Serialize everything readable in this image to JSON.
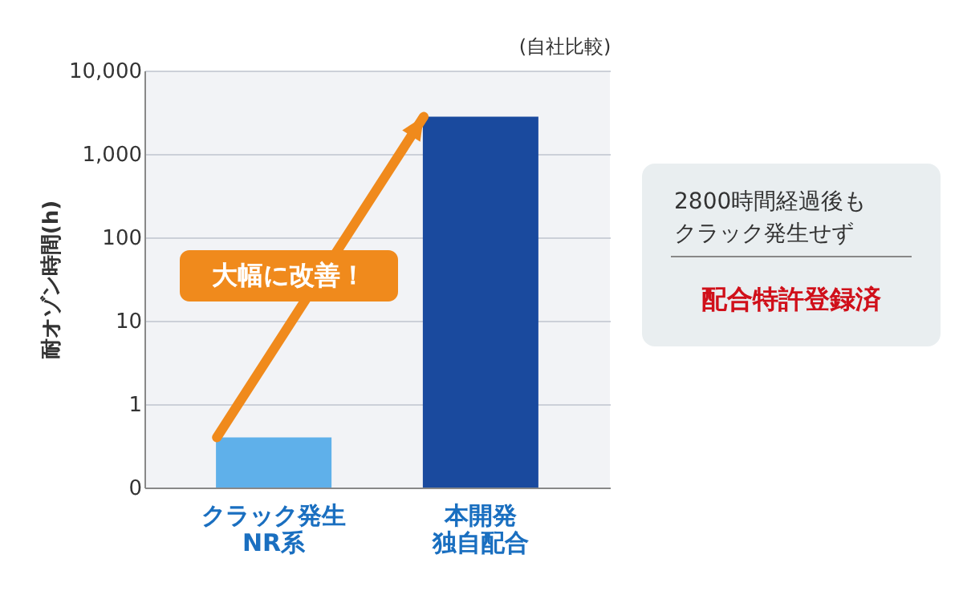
{
  "chart_data": {
    "type": "bar",
    "ylabel": "耐オゾン時間(h)",
    "categories": [
      "クラック発生NR系",
      "本開発独自配合"
    ],
    "values": [
      0.4,
      2800
    ],
    "colors": [
      "#5fb0ea",
      "#1a4a9e"
    ],
    "log": true,
    "ylim": [
      0.1,
      10000
    ],
    "yticks": [
      {
        "value": 0.1,
        "label": "0"
      },
      1,
      10,
      100,
      {
        "value": 1000,
        "label": "1,000"
      },
      {
        "value": 10000,
        "label": "10,000"
      }
    ],
    "grid": "y",
    "annotations": [
      "(自社比較)",
      "大幅に改善！",
      "2800時間経過後も",
      "クラック発生せず",
      "配合特許登録済"
    ]
  }
}
